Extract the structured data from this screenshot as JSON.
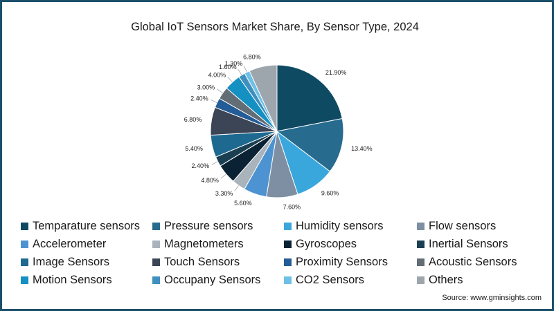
{
  "chart_data": {
    "type": "pie",
    "title": "Global IoT Sensors Market Share, By Sensor Type, 2024",
    "slices": [
      {
        "name": "Temparature sensors",
        "value": 21.9,
        "label": "21.90%",
        "color": "#0f4a63"
      },
      {
        "name": "Pressure sensors",
        "value": 13.4,
        "label": "13.40%",
        "color": "#276b8e"
      },
      {
        "name": "Humidity sensors",
        "value": 9.6,
        "label": "9.60%",
        "color": "#3aa7dc"
      },
      {
        "name": "Flow sensors",
        "value": 7.6,
        "label": "7.60%",
        "color": "#7f8fa3"
      },
      {
        "name": "Accelerometer",
        "value": 5.6,
        "label": "5.60%",
        "color": "#4e93d1"
      },
      {
        "name": "Magnetometers",
        "value": 3.3,
        "label": "3.30%",
        "color": "#a9b3bc"
      },
      {
        "name": "Gyroscopes",
        "value": 4.8,
        "label": "4.80%",
        "color": "#0a2233"
      },
      {
        "name": "Inertial Sensors",
        "value": 2.4,
        "label": "2.40%",
        "color": "#1b3f52"
      },
      {
        "name": "Image Sensors",
        "value": 5.4,
        "label": "5.40%",
        "color": "#1e6990"
      },
      {
        "name": "Touch Sensors",
        "value": 6.8,
        "label": "6.80%",
        "color": "#3b4555"
      },
      {
        "name": "Proximity Sensors",
        "value": 2.4,
        "label": "2.40%",
        "color": "#235c96"
      },
      {
        "name": "Acoustic Sensors",
        "value": 3.0,
        "label": "3.00%",
        "color": "#636d75"
      },
      {
        "name": "Motion Sensors",
        "value": 4.0,
        "label": "4.00%",
        "color": "#1590c2"
      },
      {
        "name": "Occupany Sensors",
        "value": 1.6,
        "label": "1.60%",
        "color": "#3f8fbf"
      },
      {
        "name": "CO2 Sensors",
        "value": 1.3,
        "label": "1.30%",
        "color": "#6ec0e6"
      },
      {
        "name": "Others",
        "value": 6.8,
        "label": "6.80%",
        "color": "#9ea6ad"
      }
    ],
    "legend_placement": "bottom"
  },
  "source": "Source: www.gminsights.com",
  "colors": {
    "frame": "#1b4f6a"
  }
}
